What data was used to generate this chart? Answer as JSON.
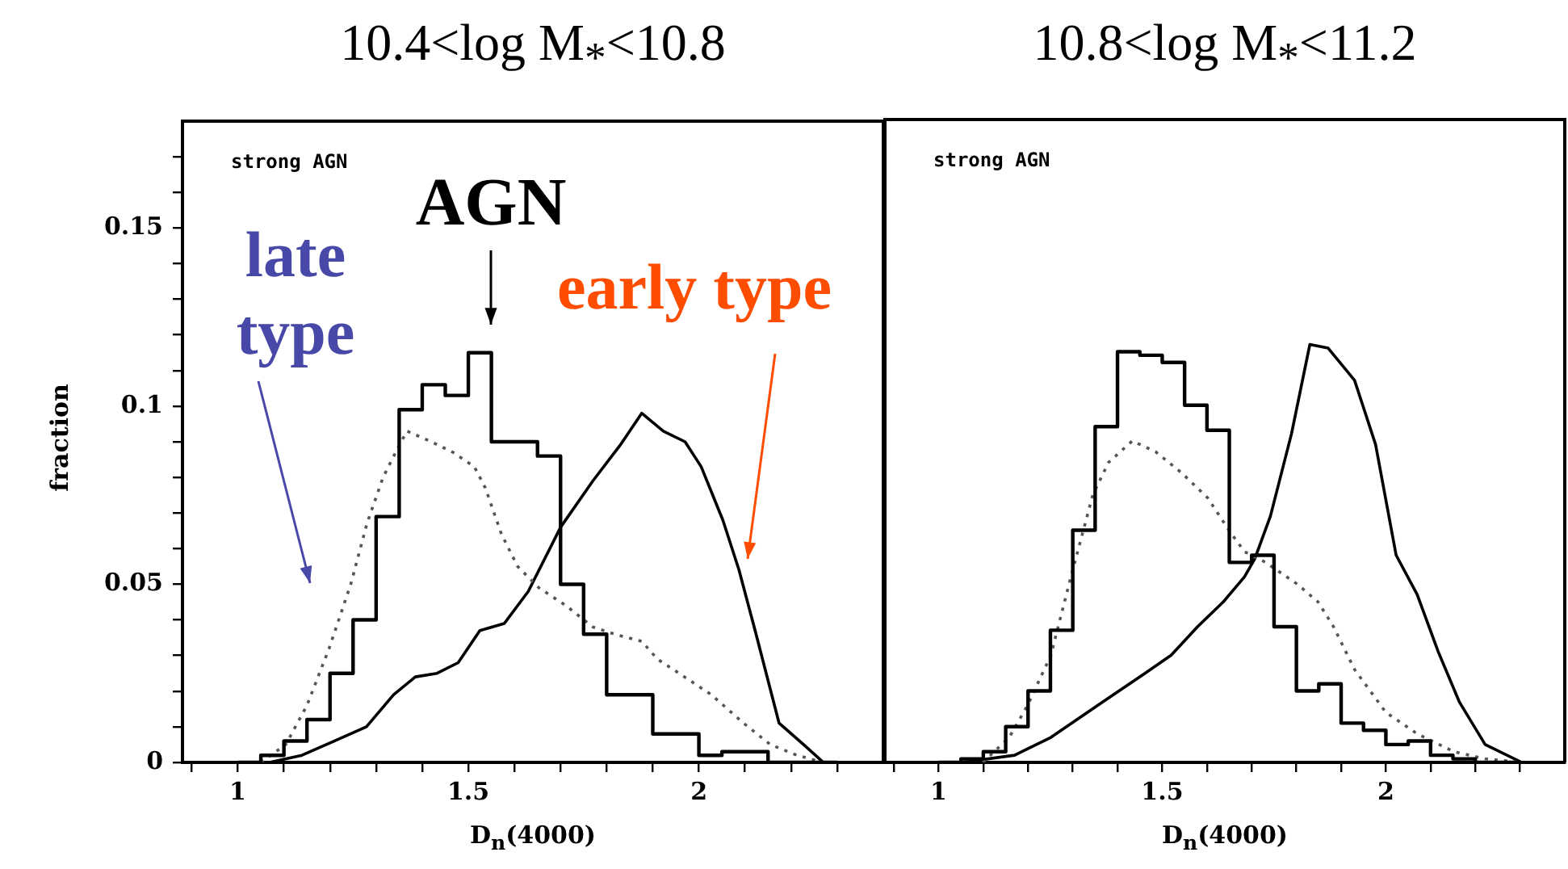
{
  "chart_data": [
    {
      "type": "line",
      "title": "10.4<log M$_{*}$<10.8",
      "xlabel": "D$_{n}$(4000)",
      "ylabel": "fraction",
      "xlim": [
        0.88,
        2.4
      ],
      "xticks": [
        {
          "value": 0.9,
          "label": null
        },
        1,
        {
          "value": 1.1,
          "label": null
        },
        {
          "value": 1.2,
          "label": null
        },
        {
          "value": 1.3,
          "label": null
        },
        {
          "value": 1.4,
          "label": null
        },
        1.5,
        {
          "value": 1.6,
          "label": null
        },
        {
          "value": 1.7,
          "label": null
        },
        {
          "value": 1.8,
          "label": null
        },
        {
          "value": 1.9,
          "label": null
        },
        2,
        {
          "value": 2.1,
          "label": null
        },
        {
          "value": 2.2,
          "label": null
        },
        {
          "value": 2.3,
          "label": null
        }
      ],
      "ylim": [
        0,
        0.18
      ],
      "yticks": [
        0,
        {
          "value": 0.01,
          "label": null
        },
        {
          "value": 0.02,
          "label": null
        },
        {
          "value": 0.03,
          "label": null
        },
        {
          "value": 0.04,
          "label": null
        },
        0.05,
        {
          "value": 0.06,
          "label": null
        },
        {
          "value": 0.07,
          "label": null
        },
        {
          "value": 0.08,
          "label": null
        },
        {
          "value": 0.09,
          "label": null
        },
        0.1,
        {
          "value": 0.11,
          "label": null
        },
        {
          "value": 0.12,
          "label": null
        },
        {
          "value": 0.13,
          "label": null
        },
        {
          "value": 0.14,
          "label": null
        },
        0.15,
        {
          "value": 0.16,
          "label": null
        },
        {
          "value": 0.17,
          "label": null
        }
      ],
      "series": [
        {
          "type": "step",
          "color": "#000000",
          "x": [
            1.0,
            1.05,
            1.1,
            1.15,
            1.2,
            1.25,
            1.3,
            1.35,
            1.4,
            1.45,
            1.5,
            1.55,
            1.6,
            1.65,
            1.7,
            1.75,
            1.8,
            1.85,
            1.9,
            1.95,
            2.0,
            2.05,
            2.1,
            2.15,
            2.3
          ],
          "values": [
            0,
            0.002,
            0.006,
            0.012,
            0.025,
            0.04,
            0.069,
            0.099,
            0.106,
            0.103,
            0.115,
            0.09,
            0.09,
            0.086,
            0.05,
            0.036,
            0.019,
            0.019,
            0.008,
            0.008,
            0.002,
            0.003,
            0.003,
            0,
            0
          ]
        },
        {
          "type": "line",
          "line_style": "dotted",
          "color": "#555555",
          "x": [
            1.05,
            1.104,
            1.15,
            1.198,
            1.245,
            1.28,
            1.315,
            1.35,
            1.367,
            1.42,
            1.467,
            1.513,
            1.537,
            1.572,
            1.607,
            1.653,
            1.712,
            1.77,
            1.817,
            1.876,
            1.91,
            1.957,
            2.027,
            2.097,
            2.155,
            2.213,
            2.27
          ],
          "values": [
            0,
            0.005,
            0.016,
            0.032,
            0.05,
            0.067,
            0.08,
            0.089,
            0.093,
            0.09,
            0.087,
            0.083,
            0.077,
            0.064,
            0.055,
            0.049,
            0.044,
            0.038,
            0.036,
            0.034,
            0.029,
            0.025,
            0.019,
            0.011,
            0.005,
            0.002,
            0
          ]
        },
        {
          "type": "line",
          "line_style": "solid",
          "color": "#000000",
          "x": [
            1.069,
            1.139,
            1.209,
            1.279,
            1.338,
            1.385,
            1.432,
            1.478,
            1.525,
            1.578,
            1.63,
            1.7,
            1.77,
            1.829,
            1.876,
            1.923,
            1.97,
            2.005,
            2.052,
            2.087,
            2.122,
            2.174,
            2.227,
            2.27,
            2.39
          ],
          "values": [
            0,
            0.002,
            0.006,
            0.01,
            0.019,
            0.024,
            0.025,
            0.028,
            0.037,
            0.039,
            0.048,
            0.066,
            0.079,
            0.089,
            0.098,
            0.093,
            0.09,
            0.083,
            0.068,
            0.054,
            0.037,
            0.011,
            0.005,
            0,
            0
          ]
        }
      ],
      "annotations": [
        "strong AGN",
        "AGN",
        "late type",
        "early type"
      ]
    },
    {
      "type": "line",
      "title": "10.8<log M$_{*}$<11.2",
      "xlabel": "D$_{n}$(4000)",
      "tick_labels": "x",
      "xlim": [
        0.88,
        2.4
      ],
      "xticks": [
        {
          "value": 0.9,
          "label": null
        },
        1,
        {
          "value": 1.1,
          "label": null
        },
        {
          "value": 1.2,
          "label": null
        },
        {
          "value": 1.3,
          "label": null
        },
        {
          "value": 1.4,
          "label": null
        },
        1.5,
        {
          "value": 1.6,
          "label": null
        },
        {
          "value": 1.7,
          "label": null
        },
        {
          "value": 1.8,
          "label": null
        },
        {
          "value": 1.9,
          "label": null
        },
        2,
        {
          "value": 2.1,
          "label": null
        },
        {
          "value": 2.2,
          "label": null
        },
        {
          "value": 2.3,
          "label": null
        }
      ],
      "ylim": [
        0,
        0.18
      ],
      "yticks": [
        0,
        {
          "value": 0.01,
          "label": null
        },
        {
          "value": 0.02,
          "label": null
        },
        {
          "value": 0.03,
          "label": null
        },
        {
          "value": 0.04,
          "label": null
        },
        0.05,
        {
          "value": 0.06,
          "label": null
        },
        {
          "value": 0.07,
          "label": null
        },
        {
          "value": 0.08,
          "label": null
        },
        {
          "value": 0.09,
          "label": null
        },
        0.1,
        {
          "value": 0.11,
          "label": null
        },
        {
          "value": 0.12,
          "label": null
        },
        {
          "value": 0.13,
          "label": null
        },
        {
          "value": 0.14,
          "label": null
        },
        0.15,
        {
          "value": 0.16,
          "label": null
        },
        {
          "value": 0.17,
          "label": null
        }
      ],
      "series": [
        {
          "type": "step",
          "color": "#000000",
          "x": [
            1.0,
            1.05,
            1.1,
            1.15,
            1.2,
            1.25,
            1.3,
            1.35,
            1.4,
            1.45,
            1.5,
            1.55,
            1.6,
            1.65,
            1.7,
            1.75,
            1.8,
            1.85,
            1.9,
            1.95,
            2.0,
            2.05,
            2.1,
            2.15,
            2.2,
            2.3
          ],
          "values": [
            0,
            0.001,
            0.003,
            0.01,
            0.02,
            0.037,
            0.065,
            0.094,
            0.115,
            0.114,
            0.112,
            0.1,
            0.093,
            0.056,
            0.058,
            0.038,
            0.02,
            0.022,
            0.011,
            0.009,
            0.005,
            0.006,
            0.002,
            0.001,
            0,
            0
          ]
        },
        {
          "type": "line",
          "line_style": "dotted",
          "color": "#555555",
          "x": [
            1.099,
            1.158,
            1.199,
            1.251,
            1.298,
            1.345,
            1.38,
            1.433,
            1.485,
            1.544,
            1.602,
            1.649,
            1.684,
            1.731,
            1.801,
            1.848,
            1.883,
            1.93,
            2.0,
            2.07,
            2.152,
            2.222,
            2.304
          ],
          "values": [
            0,
            0.007,
            0.016,
            0.03,
            0.053,
            0.075,
            0.084,
            0.09,
            0.087,
            0.081,
            0.074,
            0.065,
            0.059,
            0.056,
            0.05,
            0.045,
            0.038,
            0.026,
            0.014,
            0.008,
            0.003,
            0.001,
            0
          ]
        },
        {
          "type": "line",
          "line_style": "solid",
          "color": "#000000",
          "x": [
            1.052,
            1.17,
            1.251,
            1.368,
            1.462,
            1.52,
            1.579,
            1.637,
            1.684,
            1.707,
            1.742,
            1.789,
            1.83,
            1.871,
            1.93,
            1.977,
            2.023,
            2.07,
            2.117,
            2.164,
            2.222,
            2.304
          ],
          "values": [
            0,
            0.002,
            0.007,
            0.017,
            0.025,
            0.03,
            0.038,
            0.045,
            0.052,
            0.057,
            0.069,
            0.092,
            0.117,
            0.116,
            0.107,
            0.089,
            0.058,
            0.047,
            0.031,
            0.017,
            0.005,
            0
          ]
        }
      ],
      "annotations": [
        "strong AGN"
      ]
    }
  ]
}
